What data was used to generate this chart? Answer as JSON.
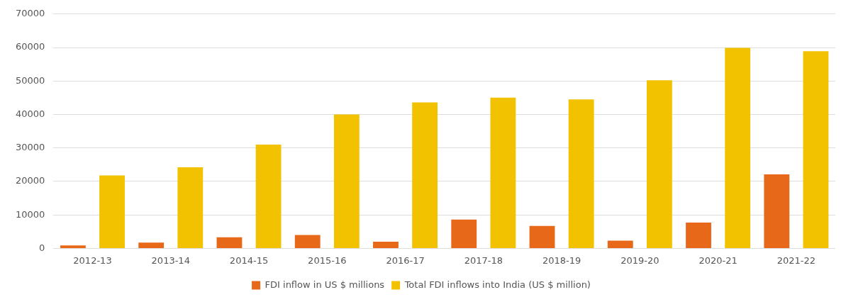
{
  "chart_data": {
    "type": "bar",
    "categories": [
      "2012-13",
      "2013-14",
      "2014-15",
      "2015-16",
      "2016-17",
      "2017-18",
      "2018-19",
      "2019-20",
      "2020-21",
      "2021-22"
    ],
    "series": [
      {
        "name": "FDI inflow in US $ millions",
        "color": "#e8681a",
        "values": [
          900,
          1700,
          3300,
          4000,
          2000,
          8600,
          6700,
          2300,
          7700,
          22100
        ]
      },
      {
        "name": "Total FDI inflows into India (US $ million)",
        "color": "#f2c200",
        "values": [
          21800,
          24200,
          31000,
          40000,
          43600,
          45000,
          44500,
          50200,
          59900,
          58900
        ]
      }
    ],
    "ylim": [
      0,
      70000
    ],
    "yticks": [
      0,
      10000,
      20000,
      30000,
      40000,
      50000,
      60000,
      70000
    ],
    "grid": "y",
    "legend": "bottom"
  }
}
